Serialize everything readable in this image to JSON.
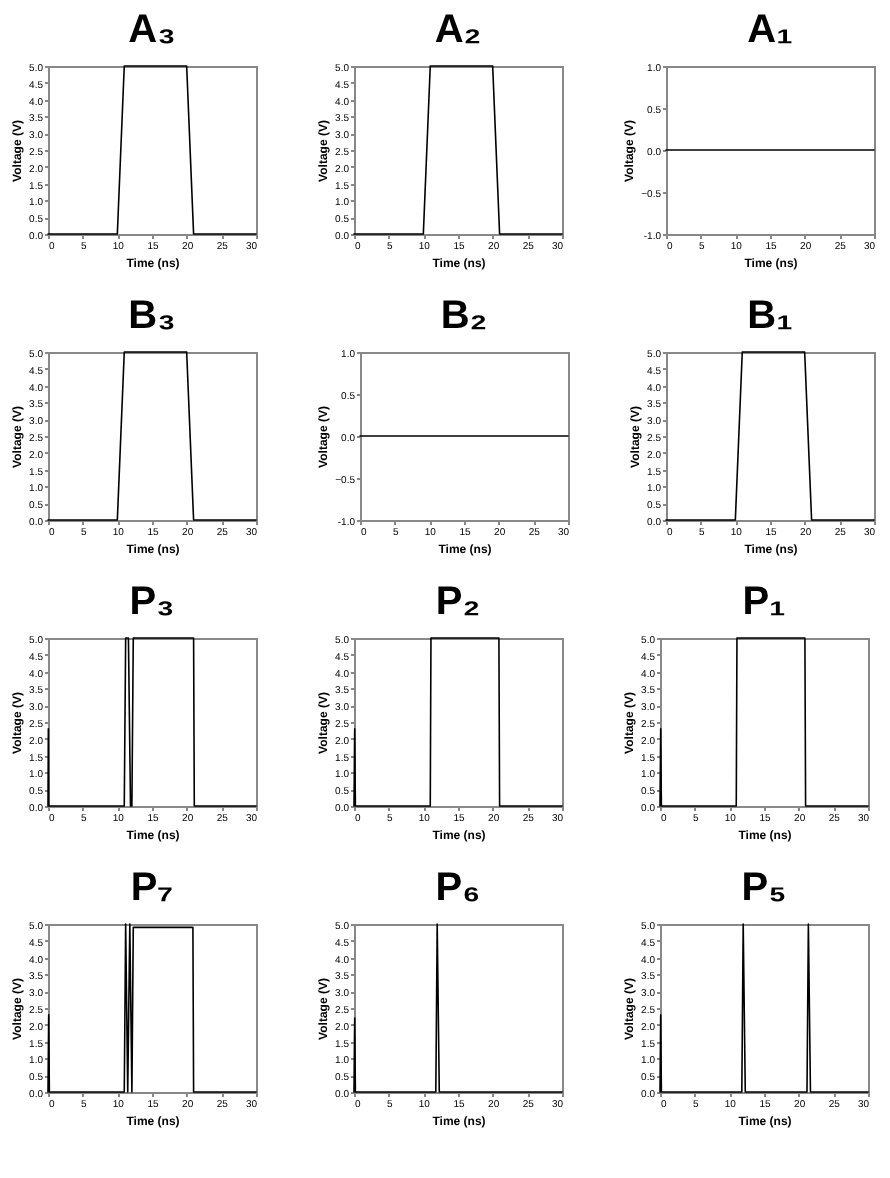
{
  "chart_data": [
    {
      "type": "line",
      "title": "A₃",
      "xlabel": "Time (ns)",
      "ylabel": "Voltage (V)",
      "color": "#000000",
      "x": [
        0,
        10,
        11,
        20,
        21,
        30
      ],
      "values": [
        0,
        0,
        5,
        5,
        0,
        0
      ],
      "xlim": [
        0,
        30
      ],
      "xticks": [
        0,
        5,
        10,
        15,
        20,
        25,
        30
      ],
      "ylim": [
        0,
        5
      ],
      "yticks": [
        {
          "value": 0,
          "label": "0.0"
        },
        0.5,
        {
          "value": 1,
          "label": "1.0"
        },
        1.5,
        {
          "value": 2,
          "label": "2.0"
        },
        2.5,
        {
          "value": 3,
          "label": "3.0"
        },
        3.5,
        {
          "value": 4,
          "label": "4.0"
        },
        4.5,
        {
          "value": 5,
          "label": "5.0"
        }
      ]
    },
    {
      "type": "line",
      "title": "A₂",
      "xlabel": "Time (ns)",
      "ylabel": "Voltage (V)",
      "color": "#000000",
      "x": [
        0,
        10,
        11,
        20,
        21,
        30
      ],
      "values": [
        0,
        0,
        5,
        5,
        0,
        0
      ],
      "xlim": [
        0,
        30
      ],
      "xticks": [
        0,
        5,
        10,
        15,
        20,
        25,
        30
      ],
      "ylim": [
        0,
        5
      ],
      "yticks": [
        {
          "value": 0,
          "label": "0.0"
        },
        0.5,
        {
          "value": 1,
          "label": "1.0"
        },
        1.5,
        {
          "value": 2,
          "label": "2.0"
        },
        2.5,
        {
          "value": 3,
          "label": "3.0"
        },
        3.5,
        {
          "value": 4,
          "label": "4.0"
        },
        4.5,
        {
          "value": 5,
          "label": "5.0"
        }
      ]
    },
    {
      "type": "line",
      "title": "A₁",
      "xlabel": "Time (ns)",
      "ylabel": "Voltage (V)",
      "color": "#000000",
      "x": [
        0,
        30
      ],
      "values": [
        0,
        0
      ],
      "xlim": [
        0,
        30
      ],
      "xticks": [
        0,
        5,
        10,
        15,
        20,
        25,
        30
      ],
      "ylim": [
        -1,
        1
      ],
      "yticks": [
        {
          "value": -1,
          "label": "-1.0"
        },
        -0.5,
        {
          "value": 0,
          "label": "0.0"
        },
        0.5,
        {
          "value": 1,
          "label": "1.0"
        }
      ]
    },
    {
      "type": "line",
      "title": "B₃",
      "xlabel": "Time (ns)",
      "ylabel": "Voltage (V)",
      "color": "#000000",
      "x": [
        0,
        10,
        11,
        20,
        21,
        30
      ],
      "values": [
        0,
        0,
        5,
        5,
        0,
        0
      ],
      "xlim": [
        0,
        30
      ],
      "xticks": [
        0,
        5,
        10,
        15,
        20,
        25,
        30
      ],
      "ylim": [
        0,
        5
      ],
      "yticks": [
        {
          "value": 0,
          "label": "0.0"
        },
        0.5,
        {
          "value": 1,
          "label": "1.0"
        },
        1.5,
        {
          "value": 2,
          "label": "2.0"
        },
        2.5,
        {
          "value": 3,
          "label": "3.0"
        },
        3.5,
        {
          "value": 4,
          "label": "4.0"
        },
        4.5,
        {
          "value": 5,
          "label": "5.0"
        }
      ]
    },
    {
      "type": "line",
      "title": "B₂",
      "xlabel": "Time (ns)",
      "ylabel": "Voltage (V)",
      "color": "#000000",
      "x": [
        0,
        30
      ],
      "values": [
        0,
        0
      ],
      "xlim": [
        0,
        30
      ],
      "xticks": [
        0,
        5,
        10,
        15,
        20,
        25,
        30
      ],
      "ylim": [
        -1,
        1
      ],
      "yticks": [
        {
          "value": -1,
          "label": "-1.0"
        },
        -0.5,
        {
          "value": 0,
          "label": "0.0"
        },
        0.5,
        {
          "value": 1,
          "label": "1.0"
        }
      ]
    },
    {
      "type": "line",
      "title": "B₁",
      "xlabel": "Time (ns)",
      "ylabel": "Voltage (V)",
      "color": "#000000",
      "x": [
        0,
        10,
        11,
        20,
        21,
        30
      ],
      "values": [
        0,
        0,
        5,
        5,
        0,
        0
      ],
      "xlim": [
        0,
        30
      ],
      "xticks": [
        0,
        5,
        10,
        15,
        20,
        25,
        30
      ],
      "ylim": [
        0,
        5
      ],
      "yticks": [
        {
          "value": 0,
          "label": "0.0"
        },
        0.5,
        {
          "value": 1,
          "label": "1.0"
        },
        1.5,
        {
          "value": 2,
          "label": "2.0"
        },
        2.5,
        {
          "value": 3,
          "label": "3.0"
        },
        3.5,
        {
          "value": 4,
          "label": "4.0"
        },
        4.5,
        {
          "value": 5,
          "label": "5.0"
        }
      ]
    },
    {
      "type": "line",
      "title": "P₃",
      "xlabel": "Time (ns)",
      "ylabel": "Voltage (V)",
      "color": "#000000",
      "x": [
        0,
        0.05,
        0.1,
        11,
        11.2,
        11.6,
        11.9,
        12.1,
        12.3,
        21,
        21.1,
        30
      ],
      "values": [
        0,
        2.3,
        0,
        0,
        5,
        5,
        0,
        0,
        5,
        5,
        0,
        0
      ],
      "xlim": [
        0,
        30
      ],
      "xticks": [
        0,
        5,
        10,
        15,
        20,
        25,
        30
      ],
      "ylim": [
        0,
        5
      ],
      "yticks": [
        {
          "value": 0,
          "label": "0.0"
        },
        0.5,
        {
          "value": 1,
          "label": "1.0"
        },
        1.5,
        {
          "value": 2,
          "label": "2.0"
        },
        2.5,
        {
          "value": 3,
          "label": "3.0"
        },
        3.5,
        {
          "value": 4,
          "label": "4.0"
        },
        4.5,
        {
          "value": 5,
          "label": "5.0"
        }
      ]
    },
    {
      "type": "line",
      "title": "P₂",
      "xlabel": "Time (ns)",
      "ylabel": "Voltage (V)",
      "color": "#000000",
      "x": [
        0,
        0.1,
        0.2,
        11,
        11.1,
        20.9,
        21,
        30
      ],
      "values": [
        0,
        2.3,
        0,
        0,
        5,
        5,
        0,
        0
      ],
      "xlim": [
        0,
        30
      ],
      "xticks": [
        0,
        5,
        10,
        15,
        20,
        25,
        30
      ],
      "ylim": [
        0,
        5
      ],
      "yticks": [
        {
          "value": 0,
          "label": "0.0"
        },
        0.5,
        {
          "value": 1,
          "label": "1.0"
        },
        1.5,
        {
          "value": 2,
          "label": "2.0"
        },
        2.5,
        {
          "value": 3,
          "label": "3.0"
        },
        3.5,
        {
          "value": 4,
          "label": "4.0"
        },
        4.5,
        {
          "value": 5,
          "label": "5.0"
        }
      ]
    },
    {
      "type": "line",
      "title": "P₁",
      "xlabel": "Time (ns)",
      "ylabel": "Voltage (V)",
      "color": "#000000",
      "x": [
        0,
        0.1,
        0.2,
        11,
        11.1,
        20.9,
        21,
        30
      ],
      "values": [
        0,
        2.3,
        0,
        0,
        5,
        5,
        0,
        0
      ],
      "xlim": [
        0,
        30
      ],
      "xticks": [
        0,
        5,
        10,
        15,
        20,
        25,
        30
      ],
      "ylim": [
        0,
        5
      ],
      "yticks": [
        {
          "value": 0,
          "label": "0.0"
        },
        0.5,
        {
          "value": 1,
          "label": "1.0"
        },
        1.5,
        {
          "value": 2,
          "label": "2.0"
        },
        2.5,
        {
          "value": 3,
          "label": "3.0"
        },
        3.5,
        {
          "value": 4,
          "label": "4.0"
        },
        4.5,
        {
          "value": 5,
          "label": "5.0"
        }
      ]
    },
    {
      "type": "line",
      "title": "P₇",
      "xlabel": "Time (ns)",
      "ylabel": "Voltage (V)",
      "color": "#000000",
      "x": [
        0,
        0.1,
        0.2,
        11,
        11.2,
        11.5,
        11.8,
        12.1,
        12.3,
        20.9,
        21,
        30
      ],
      "values": [
        0,
        2.3,
        0,
        0,
        5,
        0,
        5,
        0,
        4.9,
        4.9,
        0,
        0
      ],
      "xlim": [
        0,
        30
      ],
      "xticks": [
        0,
        5,
        10,
        15,
        20,
        25,
        30
      ],
      "ylim": [
        0,
        5
      ],
      "yticks": [
        {
          "value": 0,
          "label": "0.0"
        },
        0.5,
        {
          "value": 1,
          "label": "1.0"
        },
        1.5,
        {
          "value": 2,
          "label": "2.0"
        },
        2.5,
        {
          "value": 3,
          "label": "3.0"
        },
        3.5,
        {
          "value": 4,
          "label": "4.0"
        },
        4.5,
        {
          "value": 5,
          "label": "5.0"
        }
      ]
    },
    {
      "type": "line",
      "title": "P₆",
      "xlabel": "Time (ns)",
      "ylabel": "Voltage (V)",
      "color": "#000000",
      "x": [
        0,
        0.1,
        0.2,
        11.8,
        12,
        12.3,
        30
      ],
      "values": [
        0,
        2.2,
        0,
        0,
        5,
        0,
        0
      ],
      "xlim": [
        0,
        30
      ],
      "xticks": [
        0,
        5,
        10,
        15,
        20,
        25,
        30
      ],
      "ylim": [
        0,
        5
      ],
      "yticks": [
        {
          "value": 0,
          "label": "0.0"
        },
        0.5,
        {
          "value": 1,
          "label": "1.0"
        },
        1.5,
        {
          "value": 2,
          "label": "2.0"
        },
        2.5,
        {
          "value": 3,
          "label": "3.0"
        },
        3.5,
        {
          "value": 4,
          "label": "4.0"
        },
        4.5,
        {
          "value": 5,
          "label": "5.0"
        }
      ]
    },
    {
      "type": "line",
      "title": "P₅",
      "xlabel": "Time (ns)",
      "ylabel": "Voltage (V)",
      "color": "#000000",
      "x": [
        0,
        0.1,
        0.2,
        11.8,
        12,
        12.3,
        21.2,
        21.4,
        21.7,
        30
      ],
      "values": [
        0,
        2.3,
        0,
        0,
        5,
        0,
        0,
        5,
        0,
        0
      ],
      "xlim": [
        0,
        30
      ],
      "xticks": [
        0,
        5,
        10,
        15,
        20,
        25,
        30
      ],
      "ylim": [
        0,
        5
      ],
      "yticks": [
        {
          "value": 0,
          "label": "0.0"
        },
        0.5,
        {
          "value": 1,
          "label": "1.0"
        },
        1.5,
        {
          "value": 2,
          "label": "2.0"
        },
        2.5,
        {
          "value": 3,
          "label": "3.0"
        },
        3.5,
        {
          "value": 4,
          "label": "4.0"
        },
        4.5,
        {
          "value": 5,
          "label": "5.0"
        }
      ]
    }
  ]
}
